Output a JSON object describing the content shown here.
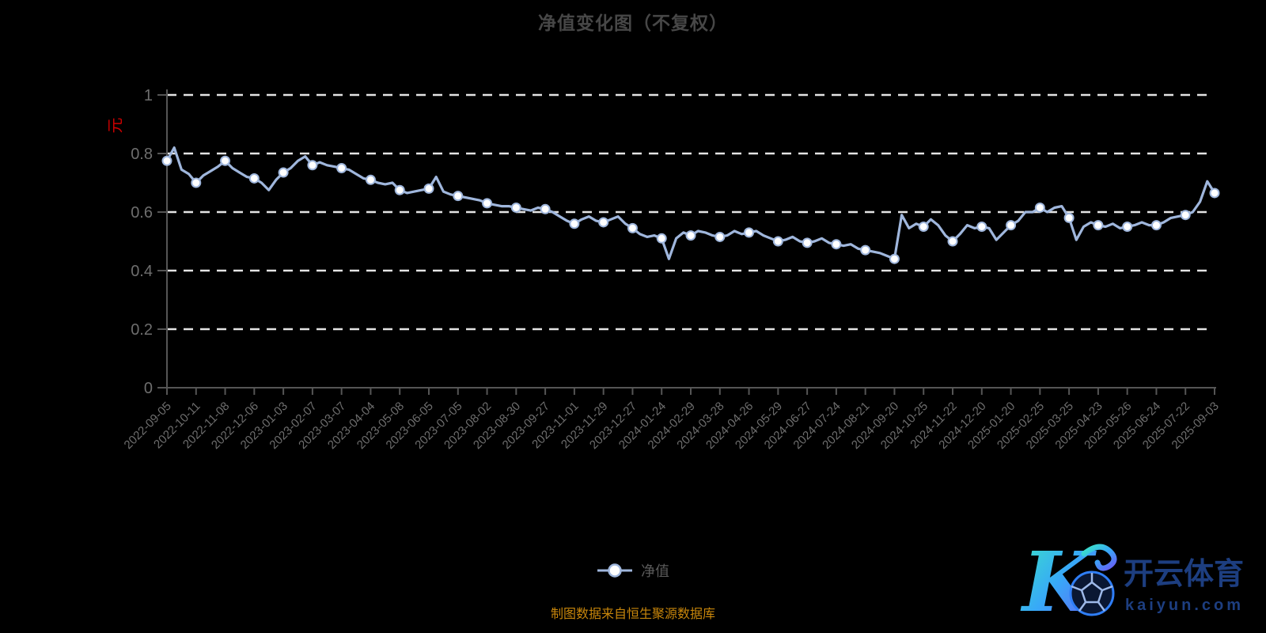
{
  "title": "净值变化图（不复权）",
  "y_axis_unit": "元",
  "legend": {
    "label": "净值"
  },
  "footer": {
    "source_note": "制图数据来自恒生聚源数据库"
  },
  "logo": {
    "monogram": "K",
    "brand_cn": "开云体育",
    "brand_domain": "kaiyun.com"
  },
  "colors": {
    "background": "#000000",
    "title": "#474747",
    "axis_line": "#555555",
    "axis_label": "#6e6e6e",
    "grid_line": "#e3e3e3",
    "series_line": "#9fb6dc",
    "marker_fill": "#ffffff",
    "unit_label": "#cc0000",
    "legend_label": "#5a5a5a",
    "footer_text": "#c8860b",
    "logo_text": "#1d3e80",
    "logo_gradient": [
      "#3ae6c5",
      "#38a8f8",
      "#6a5cf5"
    ]
  },
  "chart_data": {
    "type": "line",
    "title": "净值变化图（不复权）",
    "series_name": "净值",
    "ylabel": "元",
    "xlabel": "",
    "ylim": [
      0,
      1
    ],
    "y_ticks": [
      0,
      0.2,
      0.4,
      0.6,
      0.8,
      1
    ],
    "grid": "horizontal-dashed",
    "legend_position": "bottom-center",
    "x_tick_labels": [
      "2022-09-05",
      "2022-10-11",
      "2022-11-08",
      "2022-12-06",
      "2023-01-03",
      "2023-02-07",
      "2023-03-07",
      "2023-04-04",
      "2023-05-08",
      "2023-06-05",
      "2023-07-05",
      "2023-08-02",
      "2023-08-30",
      "2023-09-27",
      "2023-11-01",
      "2023-11-29",
      "2023-12-27",
      "2024-01-24",
      "2024-02-29",
      "2024-03-28",
      "2024-04-26",
      "2024-05-29",
      "2024-06-27",
      "2024-07-24",
      "2024-08-21",
      "2024-09-20",
      "2024-10-25",
      "2024-11-22",
      "2024-12-20",
      "2025-01-20",
      "2025-02-25",
      "2025-03-25",
      "2025-04-23",
      "2025-05-26",
      "2025-06-24",
      "2025-07-22",
      "2025-09-03"
    ],
    "markers_every": 4,
    "values": [
      0.775,
      0.82,
      0.745,
      0.73,
      0.7,
      0.725,
      0.74,
      0.755,
      0.775,
      0.75,
      0.735,
      0.72,
      0.715,
      0.7,
      0.675,
      0.71,
      0.735,
      0.75,
      0.775,
      0.79,
      0.76,
      0.77,
      0.76,
      0.755,
      0.75,
      0.745,
      0.73,
      0.715,
      0.71,
      0.7,
      0.695,
      0.7,
      0.675,
      0.665,
      0.67,
      0.675,
      0.68,
      0.72,
      0.67,
      0.66,
      0.655,
      0.65,
      0.645,
      0.64,
      0.63,
      0.625,
      0.62,
      0.62,
      0.615,
      0.61,
      0.605,
      0.615,
      0.61,
      0.6,
      0.585,
      0.57,
      0.56,
      0.575,
      0.585,
      0.57,
      0.565,
      0.575,
      0.585,
      0.56,
      0.545,
      0.525,
      0.515,
      0.52,
      0.51,
      0.44,
      0.51,
      0.53,
      0.52,
      0.535,
      0.53,
      0.52,
      0.515,
      0.52,
      0.535,
      0.525,
      0.53,
      0.535,
      0.52,
      0.51,
      0.5,
      0.505,
      0.515,
      0.5,
      0.495,
      0.5,
      0.51,
      0.495,
      0.49,
      0.485,
      0.49,
      0.475,
      0.47,
      0.465,
      0.46,
      0.45,
      0.44,
      0.59,
      0.545,
      0.56,
      0.55,
      0.575,
      0.555,
      0.52,
      0.5,
      0.525,
      0.555,
      0.545,
      0.55,
      0.545,
      0.505,
      0.53,
      0.555,
      0.57,
      0.6,
      0.6,
      0.615,
      0.6,
      0.615,
      0.62,
      0.58,
      0.505,
      0.55,
      0.565,
      0.555,
      0.55,
      0.56,
      0.545,
      0.55,
      0.555,
      0.565,
      0.555,
      0.555,
      0.565,
      0.58,
      0.585,
      0.59,
      0.6,
      0.635,
      0.705,
      0.665
    ]
  }
}
